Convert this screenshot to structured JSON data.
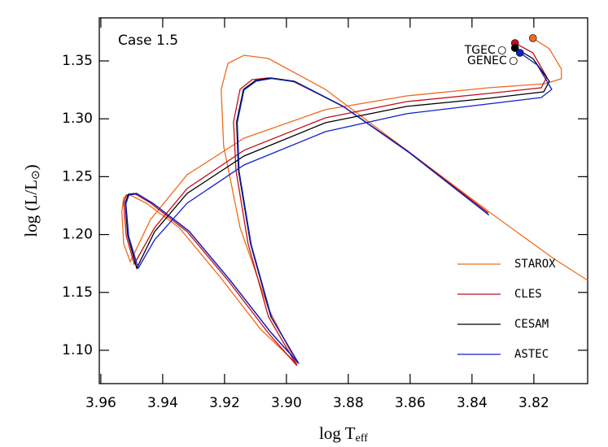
{
  "chart_data": {
    "type": "line",
    "annotation": "Case 1.5",
    "xlabel": "log T",
    "xlabel_sub": "eff",
    "ylabel": "log (L/L",
    "ylabel_sub": "⊙",
    "ylabel_end": ")",
    "xlim": [
      3.9605,
      3.8026
    ],
    "ylim": [
      1.0712,
      1.3872
    ],
    "xticks": [
      3.96,
      3.94,
      3.92,
      {
        "value": 3.9,
        "label": "3.90"
      },
      3.88,
      3.86,
      3.84,
      3.82
    ],
    "yticks": [
      {
        "value": 1.1,
        "label": "1.10"
      },
      1.15,
      {
        "value": 1.2,
        "label": "1.20"
      },
      1.25,
      {
        "value": 1.3,
        "label": "1.30"
      },
      1.35
    ],
    "legend": "lower right",
    "series": [
      {
        "name": "STAROX",
        "color": "#f06a1e",
        "x": [
          3.8203,
          3.815,
          3.8111,
          3.8111,
          3.8163,
          3.8347,
          3.8611,
          3.8874,
          3.9137,
          3.9321,
          3.9439,
          3.9505,
          3.9526,
          3.9532,
          3.9526,
          3.9505,
          3.9453,
          3.9347,
          3.9216,
          3.9084,
          3.8966,
          3.9058,
          3.915,
          3.9203,
          3.9211,
          3.9189,
          3.9137,
          3.9058,
          3.8874,
          3.8611,
          3.8347,
          3.8137,
          3.8026
        ],
        "values": [
          1.3697,
          1.3605,
          1.343,
          1.3346,
          1.3303,
          1.3268,
          1.3198,
          1.3079,
          1.2833,
          1.2517,
          1.2131,
          1.1765,
          1.192,
          1.2201,
          1.232,
          1.2341,
          1.2271,
          1.206,
          1.1639,
          1.1183,
          1.0881,
          1.1358,
          1.206,
          1.2763,
          1.3254,
          1.3479,
          1.3549,
          1.3521,
          1.3254,
          1.2728,
          1.2201,
          1.1794,
          1.1604
        ]
      },
      {
        "name": "CLES",
        "color": "#c0101a",
        "x": [
          3.8261,
          3.8203,
          3.8158,
          3.8176,
          3.8347,
          3.8611,
          3.8874,
          3.9137,
          3.9321,
          3.9426,
          3.9492,
          3.9518,
          3.9526,
          3.9518,
          3.9492,
          3.9439,
          3.9321,
          3.9189,
          3.9058,
          3.8966,
          3.9058,
          3.9124,
          3.9163,
          3.9171,
          3.915,
          3.9111,
          3.9058,
          3.8979,
          3.8821,
          3.8611,
          3.8347
        ],
        "values": [
          1.3654,
          1.357,
          1.336,
          1.3268,
          1.3219,
          1.3149,
          1.3008,
          1.2728,
          1.2397,
          1.206,
          1.1744,
          1.199,
          1.2271,
          1.2341,
          1.2355,
          1.2271,
          1.2025,
          1.1604,
          1.1147,
          1.0867,
          1.1288,
          1.192,
          1.2552,
          1.2973,
          1.3254,
          1.3338,
          1.3353,
          1.3324,
          1.3114,
          1.2728,
          1.2187
        ]
      },
      {
        "name": "CESAM",
        "color": "#000000",
        "x": [
          3.8261,
          3.8203,
          3.815,
          3.8168,
          3.8347,
          3.8611,
          3.8874,
          3.9137,
          3.9321,
          3.9426,
          3.9484,
          3.9513,
          3.9521,
          3.9511,
          3.9484,
          3.9432,
          3.9316,
          3.9184,
          3.9053,
          3.8961,
          3.905,
          3.9116,
          3.9155,
          3.9161,
          3.9139,
          3.91,
          3.905,
          3.8974,
          3.8816,
          3.8605,
          3.8347
        ],
        "values": [
          1.3612,
          1.3521,
          1.3324,
          1.3233,
          1.3177,
          1.3107,
          1.2966,
          1.2678,
          1.2355,
          1.2025,
          1.1709,
          1.199,
          1.2271,
          1.2348,
          1.2355,
          1.2271,
          1.2032,
          1.1611,
          1.1162,
          1.0888,
          1.1288,
          1.192,
          1.2552,
          1.2973,
          1.3254,
          1.3331,
          1.3353,
          1.3324,
          1.3107,
          1.2713,
          1.2173
        ]
      },
      {
        "name": "ASTEC",
        "color": "#1020c8",
        "x": [
          3.8245,
          3.8189,
          3.8142,
          3.8176,
          3.8347,
          3.8611,
          3.8874,
          3.9137,
          3.9321,
          3.9426,
          3.9479,
          3.951,
          3.9519,
          3.9509,
          3.9482,
          3.943,
          3.9314,
          3.9182,
          3.9051,
          3.896,
          3.9048,
          3.9114,
          3.9153,
          3.9159,
          3.9137,
          3.9098,
          3.9048,
          3.8972,
          3.8814,
          3.8603,
          3.8345
        ],
        "values": [
          1.357,
          1.3465,
          1.3254,
          1.3184,
          1.3128,
          1.3044,
          1.2889,
          1.2601,
          1.2271,
          1.1955,
          1.1709,
          1.1985,
          1.2266,
          1.2343,
          1.235,
          1.2266,
          1.2027,
          1.1606,
          1.1157,
          1.0885,
          1.1283,
          1.1915,
          1.2547,
          1.2968,
          1.3249,
          1.3326,
          1.3348,
          1.3319,
          1.3102,
          1.2708,
          1.2168
        ]
      }
    ],
    "models": [
      {
        "label": "TGEC",
        "x": 3.8303,
        "y": 1.3591
      },
      {
        "label": "GENEC",
        "x": 3.8266,
        "y": 1.35
      }
    ]
  }
}
